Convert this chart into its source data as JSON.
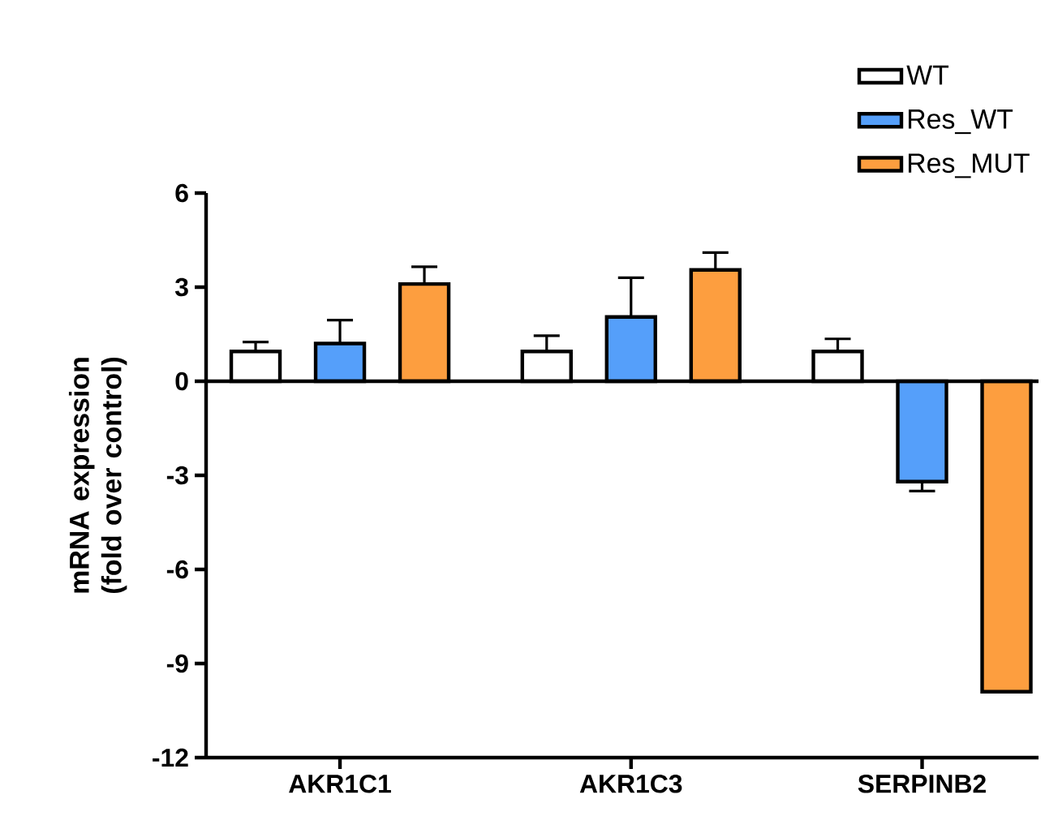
{
  "chart_data": {
    "type": "bar",
    "ylabel": "mRNA expression (fold over control)",
    "categories": [
      "AKR1C1",
      "AKR1C3",
      "SERPINB2"
    ],
    "series": [
      {
        "name": "WT",
        "color": "#ffffff",
        "values": [
          0.95,
          0.95,
          0.95
        ],
        "errors": [
          0.3,
          0.5,
          0.4
        ]
      },
      {
        "name": "Res_WT",
        "color": "#559ffa",
        "values": [
          1.2,
          2.05,
          -3.2
        ],
        "errors": [
          0.75,
          1.25,
          0.3
        ]
      },
      {
        "name": "Res_MUT",
        "color": "#fd9e3f",
        "values": [
          3.1,
          3.55,
          -9.9
        ],
        "errors": [
          0.55,
          0.55,
          null
        ]
      }
    ],
    "ylim": [
      -12,
      6
    ],
    "yticks": [
      -12,
      -9,
      -6,
      -3,
      0,
      3,
      6
    ],
    "ref_lines": [
      {
        "axis": "y",
        "value": 0,
        "color": "#000000"
      }
    ],
    "grid": false,
    "legend": "top right"
  }
}
